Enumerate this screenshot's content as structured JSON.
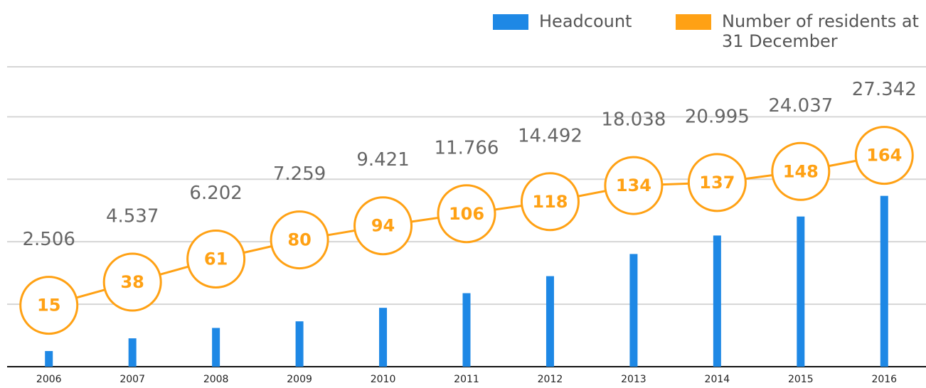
{
  "chart_data": {
    "type": "bar_line",
    "categories": [
      "2006",
      "2007",
      "2008",
      "2009",
      "2010",
      "2011",
      "2012",
      "2013",
      "2014",
      "2015",
      "2016"
    ],
    "series": [
      {
        "name": "Headcount",
        "color": "#1e88e5",
        "type": "bar",
        "values": [
          2506,
          4537,
          6202,
          7259,
          9421,
          11766,
          14492,
          18038,
          20995,
          24037,
          27342
        ],
        "value_labels": [
          "2.506",
          "4.537",
          "6.202",
          "7.259",
          "9.421",
          "11.766",
          "14.492",
          "18.038",
          "20.995",
          "24.037",
          "27.342"
        ]
      },
      {
        "name": "Number of residents at 31 December",
        "color": "#ffa114",
        "type": "line",
        "axis": "y2",
        "values": [
          15,
          38,
          61,
          80,
          94,
          106,
          118,
          134,
          137,
          148,
          164
        ]
      }
    ],
    "ylim": [
      0,
      48000
    ],
    "yticks": [
      0,
      10000,
      20000,
      30000,
      40000
    ],
    "y2lim": [
      -46,
      252
    ],
    "grid": true
  }
}
